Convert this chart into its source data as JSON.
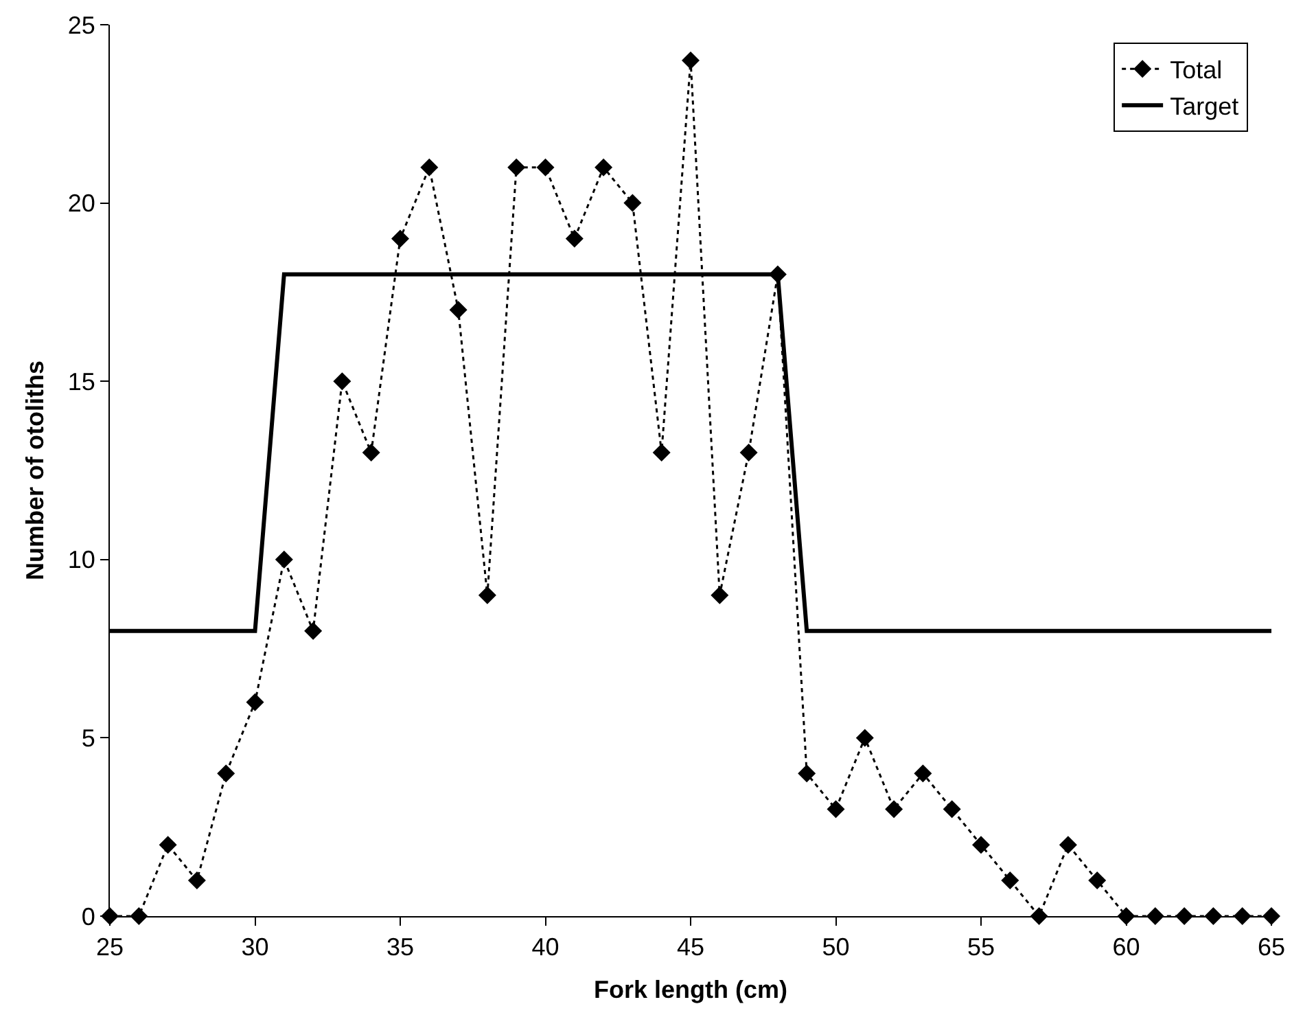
{
  "chart_data": {
    "type": "line",
    "xlabel": "Fork length (cm)",
    "ylabel": "Number of otoliths",
    "xlim": [
      25,
      65
    ],
    "xticks": [
      25,
      30,
      35,
      40,
      45,
      50,
      55,
      60,
      65
    ],
    "ylim": [
      0,
      25
    ],
    "yticks": [
      0,
      5,
      10,
      15,
      20,
      25
    ],
    "grid": false,
    "legend": "top right",
    "series": [
      {
        "name": "Total",
        "color": "#000000",
        "marker": "diamond",
        "line_style": "dotted",
        "x": [
          25,
          26,
          27,
          28,
          29,
          30,
          31,
          32,
          33,
          34,
          35,
          36,
          37,
          38,
          39,
          40,
          41,
          42,
          43,
          44,
          45,
          46,
          47,
          48,
          49,
          50,
          51,
          52,
          53,
          54,
          55,
          56,
          57,
          58,
          59,
          60,
          61,
          62,
          63,
          64,
          65
        ],
        "values": [
          0,
          0,
          2,
          1,
          4,
          6,
          10,
          8,
          15,
          13,
          19,
          21,
          17,
          9,
          21,
          21,
          19,
          21,
          20,
          13,
          24,
          9,
          13,
          18,
          4,
          3,
          5,
          3,
          4,
          3,
          2,
          1,
          0,
          2,
          1,
          0,
          0,
          0,
          0,
          0,
          0
        ]
      },
      {
        "name": "Target",
        "color": "#000000",
        "marker": "none",
        "line_style": "solid",
        "x": [
          25,
          30,
          31,
          48,
          49,
          65
        ],
        "values": [
          8,
          8,
          18,
          18,
          8,
          8
        ]
      }
    ]
  }
}
